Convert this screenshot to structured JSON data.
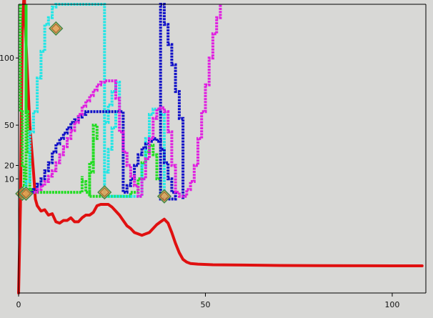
{
  "chart_data": {
    "type": "line",
    "title": "",
    "xlabel": "",
    "ylabel": "",
    "xlim": [
      0,
      109
    ],
    "ylim": [
      -75,
      140
    ],
    "x_ticks": [
      0,
      50,
      100
    ],
    "y_ticks": [
      10,
      20,
      50,
      100
    ],
    "grid": false,
    "legend": "none",
    "colors": {
      "background": "#d8d8d6",
      "axis": "#000000",
      "red": "#e01010",
      "green": "#22dd22",
      "cyan": "#22e6e6",
      "blue": "#1010c8",
      "magenta": "#e020e0",
      "marker_fill": "#e6a050",
      "marker_edge": "#4c8a4c"
    },
    "series": [
      {
        "color": "red",
        "style": "line",
        "points": [
          [
            0,
            -75
          ],
          [
            0.5,
            -10
          ],
          [
            1,
            120
          ],
          [
            1.5,
            150
          ],
          [
            2,
            110
          ],
          [
            3,
            50
          ],
          [
            4,
            15
          ],
          [
            4.5,
            -5
          ],
          [
            5,
            -10
          ],
          [
            6,
            -14
          ],
          [
            7,
            -13
          ],
          [
            8,
            -17
          ],
          [
            9,
            -16
          ],
          [
            10,
            -22
          ],
          [
            11,
            -23
          ],
          [
            12,
            -21
          ],
          [
            13,
            -21
          ],
          [
            14,
            -19
          ],
          [
            15,
            -22
          ],
          [
            16,
            -22
          ],
          [
            17,
            -19
          ],
          [
            18,
            -17
          ],
          [
            19,
            -17
          ],
          [
            20,
            -15
          ],
          [
            21,
            -10
          ],
          [
            22,
            -9
          ],
          [
            23,
            -9
          ],
          [
            24,
            -9
          ],
          [
            25,
            -11
          ],
          [
            26,
            -14
          ],
          [
            27,
            -17
          ],
          [
            28,
            -21
          ],
          [
            29,
            -25
          ],
          [
            30,
            -27
          ],
          [
            31,
            -30
          ],
          [
            32,
            -31
          ],
          [
            33,
            -32
          ],
          [
            34,
            -31
          ],
          [
            35,
            -30
          ],
          [
            36,
            -27
          ],
          [
            37,
            -24
          ],
          [
            38,
            -22
          ],
          [
            39,
            -20
          ],
          [
            40,
            -23
          ],
          [
            41,
            -30
          ],
          [
            42,
            -38
          ],
          [
            43,
            -45
          ],
          [
            44,
            -50
          ],
          [
            45,
            -52
          ],
          [
            46,
            -53
          ],
          [
            48,
            -53.5
          ],
          [
            52,
            -54
          ],
          [
            60,
            -54.2
          ],
          [
            70,
            -54.5
          ],
          [
            80,
            -54.6
          ],
          [
            90,
            -54.7
          ],
          [
            100,
            -54.8
          ],
          [
            108,
            -54.8
          ]
        ]
      },
      {
        "color": "green",
        "style": "step",
        "points": [
          [
            0.5,
            140
          ],
          [
            0.5,
            60
          ],
          [
            1,
            20
          ],
          [
            1.5,
            5
          ],
          [
            2,
            140
          ],
          [
            2,
            60
          ],
          [
            2.5,
            30
          ],
          [
            3,
            10
          ],
          [
            3,
            2
          ],
          [
            3.5,
            0
          ],
          [
            17,
            12
          ],
          [
            17,
            8
          ],
          [
            18,
            4
          ],
          [
            18,
            0
          ],
          [
            19,
            -3
          ],
          [
            19,
            22
          ],
          [
            20,
            35
          ],
          [
            20,
            50
          ],
          [
            21,
            50
          ],
          [
            21,
            40
          ],
          [
            20,
            30
          ],
          [
            20,
            15
          ],
          [
            19,
            0
          ],
          [
            19,
            -3
          ],
          [
            30,
            -3
          ],
          [
            30,
            0
          ],
          [
            32,
            10
          ],
          [
            33,
            22
          ],
          [
            34,
            30
          ],
          [
            35,
            35
          ],
          [
            36,
            33
          ],
          [
            36,
            28
          ],
          [
            37,
            20
          ],
          [
            37,
            10
          ],
          [
            38,
            0
          ],
          [
            38,
            -3
          ]
        ]
      },
      {
        "color": "cyan",
        "style": "step",
        "points": [
          [
            1.5,
            0
          ],
          [
            2,
            8
          ],
          [
            3,
            30
          ],
          [
            3,
            45
          ],
          [
            4,
            60
          ],
          [
            5,
            85
          ],
          [
            6,
            105
          ],
          [
            7,
            125
          ],
          [
            8,
            130
          ],
          [
            9,
            138
          ],
          [
            10,
            140
          ],
          [
            11,
            140
          ],
          [
            23,
            -3
          ],
          [
            23,
            2
          ],
          [
            23,
            15
          ],
          [
            24,
            32
          ],
          [
            25,
            48
          ],
          [
            26,
            60
          ],
          [
            27,
            70
          ],
          [
            27,
            82
          ],
          [
            26,
            82
          ],
          [
            26,
            75
          ],
          [
            25,
            65
          ],
          [
            24,
            52
          ],
          [
            23,
            38
          ],
          [
            23,
            20
          ],
          [
            23,
            -3
          ],
          [
            33,
            -3
          ],
          [
            33,
            2
          ],
          [
            33,
            20
          ],
          [
            34,
            40
          ],
          [
            35,
            58
          ],
          [
            36,
            62
          ],
          [
            37,
            62
          ],
          [
            38,
            58
          ],
          [
            39,
            50
          ],
          [
            39,
            -3
          ],
          [
            40,
            -3
          ]
        ]
      },
      {
        "color": "blue",
        "style": "step",
        "points": [
          [
            3,
            0
          ],
          [
            4,
            2
          ],
          [
            5,
            6
          ],
          [
            6,
            10
          ],
          [
            7,
            16
          ],
          [
            8,
            22
          ],
          [
            9,
            30
          ],
          [
            10,
            36
          ],
          [
            11,
            40
          ],
          [
            12,
            44
          ],
          [
            13,
            48
          ],
          [
            14,
            52
          ],
          [
            15,
            54
          ],
          [
            16,
            56
          ],
          [
            17,
            58
          ],
          [
            18,
            60
          ],
          [
            19,
            60
          ],
          [
            28,
            0
          ],
          [
            29,
            5
          ],
          [
            30,
            10
          ],
          [
            31,
            20
          ],
          [
            32,
            28
          ],
          [
            33,
            33
          ],
          [
            34,
            36
          ],
          [
            35,
            38
          ],
          [
            36,
            40
          ],
          [
            37,
            38
          ],
          [
            38,
            32
          ],
          [
            39,
            22
          ],
          [
            40,
            10
          ],
          [
            41,
            0
          ],
          [
            42,
            -5
          ],
          [
            38,
            140
          ],
          [
            39,
            140
          ],
          [
            39,
            125
          ],
          [
            40,
            110
          ],
          [
            41,
            95
          ],
          [
            42,
            75
          ],
          [
            43,
            55
          ],
          [
            44,
            35
          ],
          [
            44,
            15
          ],
          [
            44,
            -5
          ]
        ]
      },
      {
        "color": "magenta",
        "style": "step",
        "points": [
          [
            4,
            0
          ],
          [
            5,
            2
          ],
          [
            6,
            5
          ],
          [
            7,
            8
          ],
          [
            8,
            12
          ],
          [
            9,
            16
          ],
          [
            10,
            22
          ],
          [
            11,
            28
          ],
          [
            12,
            34
          ],
          [
            13,
            40
          ],
          [
            14,
            46
          ],
          [
            15,
            52
          ],
          [
            16,
            58
          ],
          [
            17,
            64
          ],
          [
            18,
            68
          ],
          [
            19,
            72
          ],
          [
            20,
            76
          ],
          [
            21,
            80
          ],
          [
            22,
            82
          ],
          [
            23,
            83
          ],
          [
            25,
            83
          ],
          [
            26,
            80
          ],
          [
            26,
            70
          ],
          [
            27,
            60
          ],
          [
            27,
            45
          ],
          [
            28,
            30
          ],
          [
            29,
            20
          ],
          [
            30,
            12
          ],
          [
            31,
            5
          ],
          [
            32,
            -3
          ],
          [
            33,
            -3
          ],
          [
            33,
            10
          ],
          [
            34,
            25
          ],
          [
            35,
            40
          ],
          [
            36,
            55
          ],
          [
            37,
            62
          ],
          [
            38,
            63
          ],
          [
            39,
            60
          ],
          [
            40,
            55
          ],
          [
            40,
            45
          ],
          [
            41,
            35
          ],
          [
            41,
            20
          ],
          [
            42,
            8
          ],
          [
            42,
            0
          ],
          [
            43,
            -3
          ],
          [
            44,
            -3
          ],
          [
            45,
            2
          ],
          [
            46,
            8
          ],
          [
            47,
            20
          ],
          [
            48,
            40
          ],
          [
            49,
            60
          ],
          [
            50,
            80
          ],
          [
            51,
            100
          ],
          [
            52,
            118
          ],
          [
            53,
            130
          ],
          [
            54,
            140
          ]
        ]
      }
    ],
    "markers": [
      [
        10,
        122
      ],
      [
        1,
        -1
      ],
      [
        2,
        -1
      ],
      [
        23,
        0
      ],
      [
        39,
        -3
      ]
    ]
  }
}
